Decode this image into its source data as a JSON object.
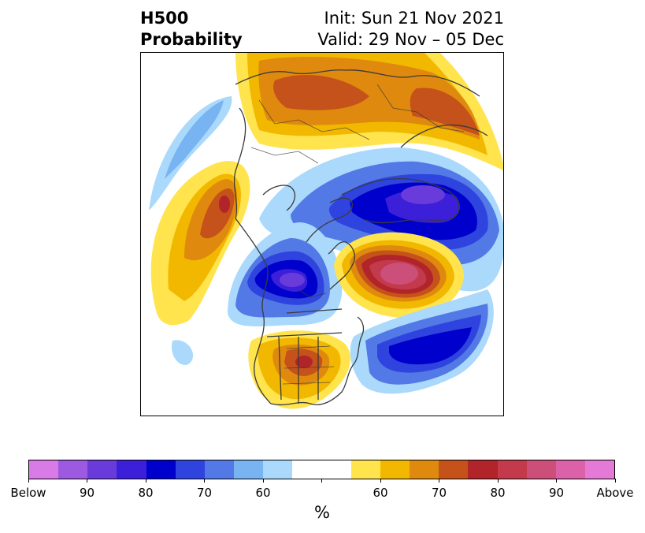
{
  "title": {
    "left_line1": "H500",
    "left_line2": "Probability",
    "right_line1": "Init: Sun 21 Nov 2021",
    "right_line2": "Valid: 29 Nov – 05 Dec"
  },
  "colorbar": {
    "unit": "%",
    "colors": [
      "#d97be6",
      "#9d5ae0",
      "#6a3bdb",
      "#3c1fd8",
      "#0000cc",
      "#2f44de",
      "#5279e6",
      "#78b3f2",
      "#aad9fb",
      "#ffffff",
      "#ffffff",
      "#ffe44e",
      "#f2b800",
      "#df8a0e",
      "#c4521a",
      "#b0242a",
      "#c23a4c",
      "#cc4f7a",
      "#db62a8",
      "#e57ad6"
    ],
    "labels": [
      "Below",
      "90",
      "80",
      "70",
      "60",
      "60",
      "70",
      "80",
      "90",
      "Above"
    ]
  },
  "colors": {
    "below_deep": "#6a3bdb",
    "below_strong": "#0000cc",
    "below_mid": "#5279e6",
    "below_light": "#aad9fb",
    "above_light": "#ffe44e",
    "above_mid": "#f2b800",
    "above_strong": "#c4521a",
    "above_deep": "#b0242a",
    "above_max": "#cc4f7a",
    "coastline": "#3a3a3a"
  }
}
